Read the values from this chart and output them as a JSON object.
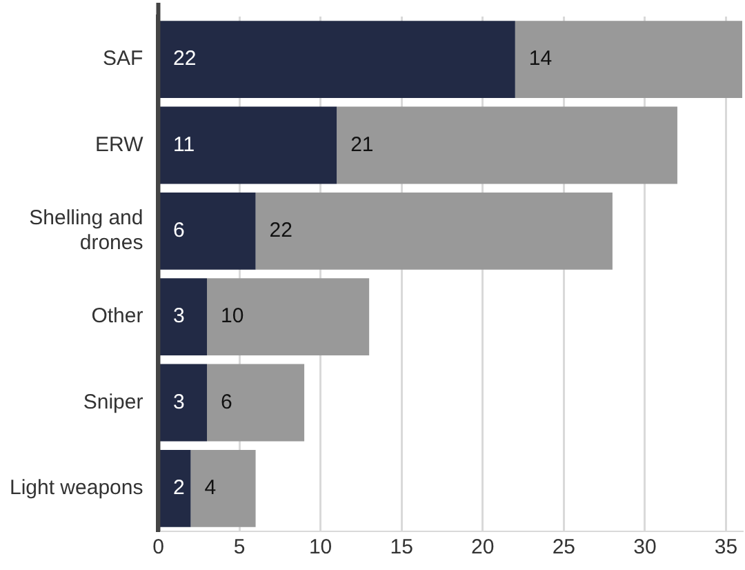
{
  "chart_data": {
    "type": "bar",
    "orientation": "horizontal",
    "stacked": true,
    "categories": [
      "SAF",
      "ERW",
      "Shelling and drones",
      "Other",
      "Sniper",
      "Light weapons"
    ],
    "series": [
      {
        "color": "#222a45",
        "values": [
          22,
          11,
          6,
          3,
          3,
          2
        ]
      },
      {
        "color": "#999999",
        "values": [
          14,
          21,
          22,
          10,
          6,
          4
        ]
      }
    ],
    "xlim": [
      0,
      36
    ],
    "xticks": [
      0,
      5,
      10,
      15,
      20,
      25,
      30,
      35
    ],
    "grid": "x",
    "data_labels": true,
    "legend": false
  }
}
